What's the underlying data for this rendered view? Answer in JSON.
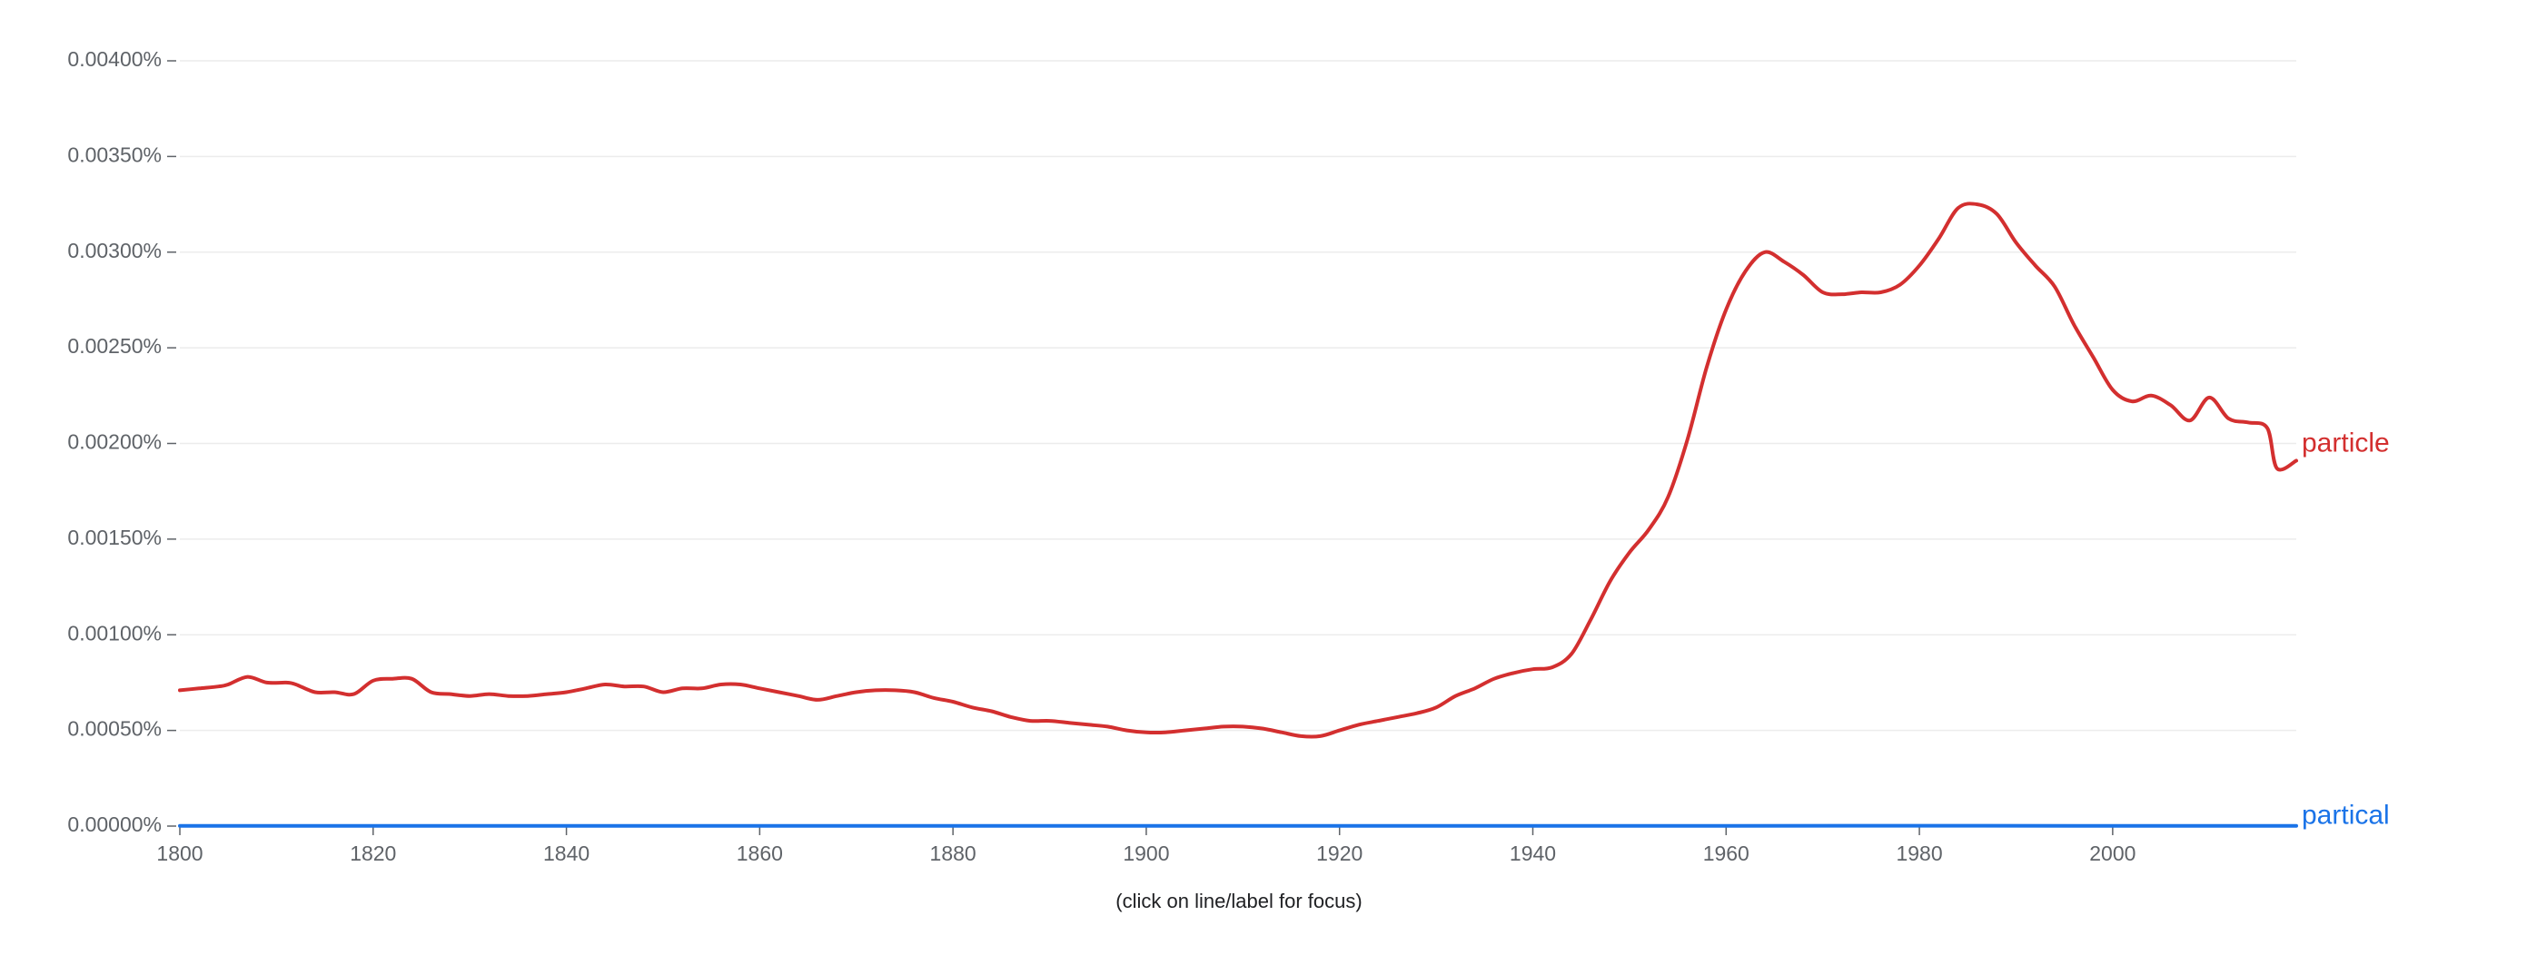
{
  "caption": "(click on line/label for focus)",
  "chart_data": {
    "type": "line",
    "title": "",
    "xlabel": "",
    "ylabel": "",
    "xlim": [
      1800,
      2019
    ],
    "ylim": [
      0,
      0.004
    ],
    "y_unit": "%",
    "grid": true,
    "legend_placement": "inline at line ends (right)",
    "x_ticks": [
      1800,
      1820,
      1840,
      1860,
      1880,
      1900,
      1920,
      1940,
      1960,
      1980,
      2000
    ],
    "y_ticks": [
      {
        "value": 0,
        "label": "0.00000%"
      },
      {
        "value": 0.0005,
        "label": "0.00050%"
      },
      {
        "value": 0.001,
        "label": "0.00100%"
      },
      {
        "value": 0.0015,
        "label": "0.00150%"
      },
      {
        "value": 0.002,
        "label": "0.00200%"
      },
      {
        "value": 0.0025,
        "label": "0.00250%"
      },
      {
        "value": 0.003,
        "label": "0.00300%"
      },
      {
        "value": 0.0035,
        "label": "0.00350%"
      },
      {
        "value": 0.004,
        "label": "0.00400%"
      }
    ],
    "series": [
      {
        "name": "particle",
        "color": "#d32f2f",
        "points": [
          [
            1800,
            0.00071
          ],
          [
            1802,
            0.00072
          ],
          [
            1804,
            0.00073
          ],
          [
            1805,
            0.00074
          ],
          [
            1807,
            0.00078
          ],
          [
            1809,
            0.00075
          ],
          [
            1811,
            0.00075
          ],
          [
            1812,
            0.00074
          ],
          [
            1814,
            0.0007
          ],
          [
            1816,
            0.0007
          ],
          [
            1818,
            0.00069
          ],
          [
            1820,
            0.00076
          ],
          [
            1822,
            0.00077
          ],
          [
            1824,
            0.00077
          ],
          [
            1826,
            0.0007
          ],
          [
            1828,
            0.00069
          ],
          [
            1830,
            0.00068
          ],
          [
            1832,
            0.00069
          ],
          [
            1834,
            0.00068
          ],
          [
            1836,
            0.00068
          ],
          [
            1838,
            0.00069
          ],
          [
            1840,
            0.0007
          ],
          [
            1842,
            0.00072
          ],
          [
            1844,
            0.00074
          ],
          [
            1846,
            0.00073
          ],
          [
            1848,
            0.00073
          ],
          [
            1850,
            0.0007
          ],
          [
            1852,
            0.00072
          ],
          [
            1854,
            0.00072
          ],
          [
            1856,
            0.00074
          ],
          [
            1858,
            0.00074
          ],
          [
            1860,
            0.00072
          ],
          [
            1862,
            0.0007
          ],
          [
            1864,
            0.00068
          ],
          [
            1866,
            0.00066
          ],
          [
            1868,
            0.00068
          ],
          [
            1870,
            0.0007
          ],
          [
            1872,
            0.00071
          ],
          [
            1874,
            0.00071
          ],
          [
            1876,
            0.0007
          ],
          [
            1878,
            0.00067
          ],
          [
            1880,
            0.00065
          ],
          [
            1882,
            0.00062
          ],
          [
            1884,
            0.0006
          ],
          [
            1886,
            0.00057
          ],
          [
            1888,
            0.00055
          ],
          [
            1890,
            0.00055
          ],
          [
            1892,
            0.00054
          ],
          [
            1894,
            0.00053
          ],
          [
            1896,
            0.00052
          ],
          [
            1898,
            0.0005
          ],
          [
            1900,
            0.00049
          ],
          [
            1902,
            0.00049
          ],
          [
            1904,
            0.0005
          ],
          [
            1906,
            0.00051
          ],
          [
            1908,
            0.00052
          ],
          [
            1910,
            0.00052
          ],
          [
            1912,
            0.00051
          ],
          [
            1914,
            0.00049
          ],
          [
            1916,
            0.00047
          ],
          [
            1918,
            0.00047
          ],
          [
            1920,
            0.0005
          ],
          [
            1922,
            0.00053
          ],
          [
            1924,
            0.00055
          ],
          [
            1926,
            0.00057
          ],
          [
            1928,
            0.00059
          ],
          [
            1930,
            0.00062
          ],
          [
            1932,
            0.00068
          ],
          [
            1934,
            0.00072
          ],
          [
            1936,
            0.00077
          ],
          [
            1938,
            0.0008
          ],
          [
            1940,
            0.00082
          ],
          [
            1942,
            0.00083
          ],
          [
            1944,
            0.0009
          ],
          [
            1946,
            0.00108
          ],
          [
            1948,
            0.00128
          ],
          [
            1950,
            0.00143
          ],
          [
            1952,
            0.00155
          ],
          [
            1954,
            0.00172
          ],
          [
            1956,
            0.00202
          ],
          [
            1958,
            0.0024
          ],
          [
            1960,
            0.0027
          ],
          [
            1962,
            0.0029
          ],
          [
            1964,
            0.003
          ],
          [
            1966,
            0.00295
          ],
          [
            1968,
            0.00288
          ],
          [
            1970,
            0.00279
          ],
          [
            1972,
            0.00278
          ],
          [
            1974,
            0.00279
          ],
          [
            1976,
            0.00279
          ],
          [
            1978,
            0.00283
          ],
          [
            1980,
            0.00293
          ],
          [
            1982,
            0.00307
          ],
          [
            1984,
            0.00323
          ],
          [
            1986,
            0.00325
          ],
          [
            1988,
            0.0032
          ],
          [
            1990,
            0.00305
          ],
          [
            1992,
            0.00293
          ],
          [
            1994,
            0.00282
          ],
          [
            1996,
            0.00262
          ],
          [
            1998,
            0.00245
          ],
          [
            2000,
            0.00228
          ],
          [
            2002,
            0.00222
          ],
          [
            2004,
            0.00225
          ],
          [
            2006,
            0.0022
          ],
          [
            2008,
            0.00212
          ],
          [
            2010,
            0.00224
          ],
          [
            2012,
            0.00213
          ],
          [
            2014,
            0.00211
          ],
          [
            2016,
            0.00208
          ],
          [
            2017,
            0.00187
          ],
          [
            2019,
            0.00191
          ]
        ]
      },
      {
        "name": "partical",
        "color": "#1a73e8",
        "points": [
          [
            1800,
            1e-06
          ],
          [
            1820,
            1e-06
          ],
          [
            1840,
            1e-06
          ],
          [
            1860,
            1e-06
          ],
          [
            1880,
            1e-06
          ],
          [
            1900,
            1e-06
          ],
          [
            1920,
            1e-06
          ],
          [
            1940,
            1e-06
          ],
          [
            1960,
            1e-06
          ],
          [
            1980,
            2e-06
          ],
          [
            2000,
            1e-06
          ],
          [
            2019,
            1e-06
          ]
        ]
      }
    ]
  }
}
